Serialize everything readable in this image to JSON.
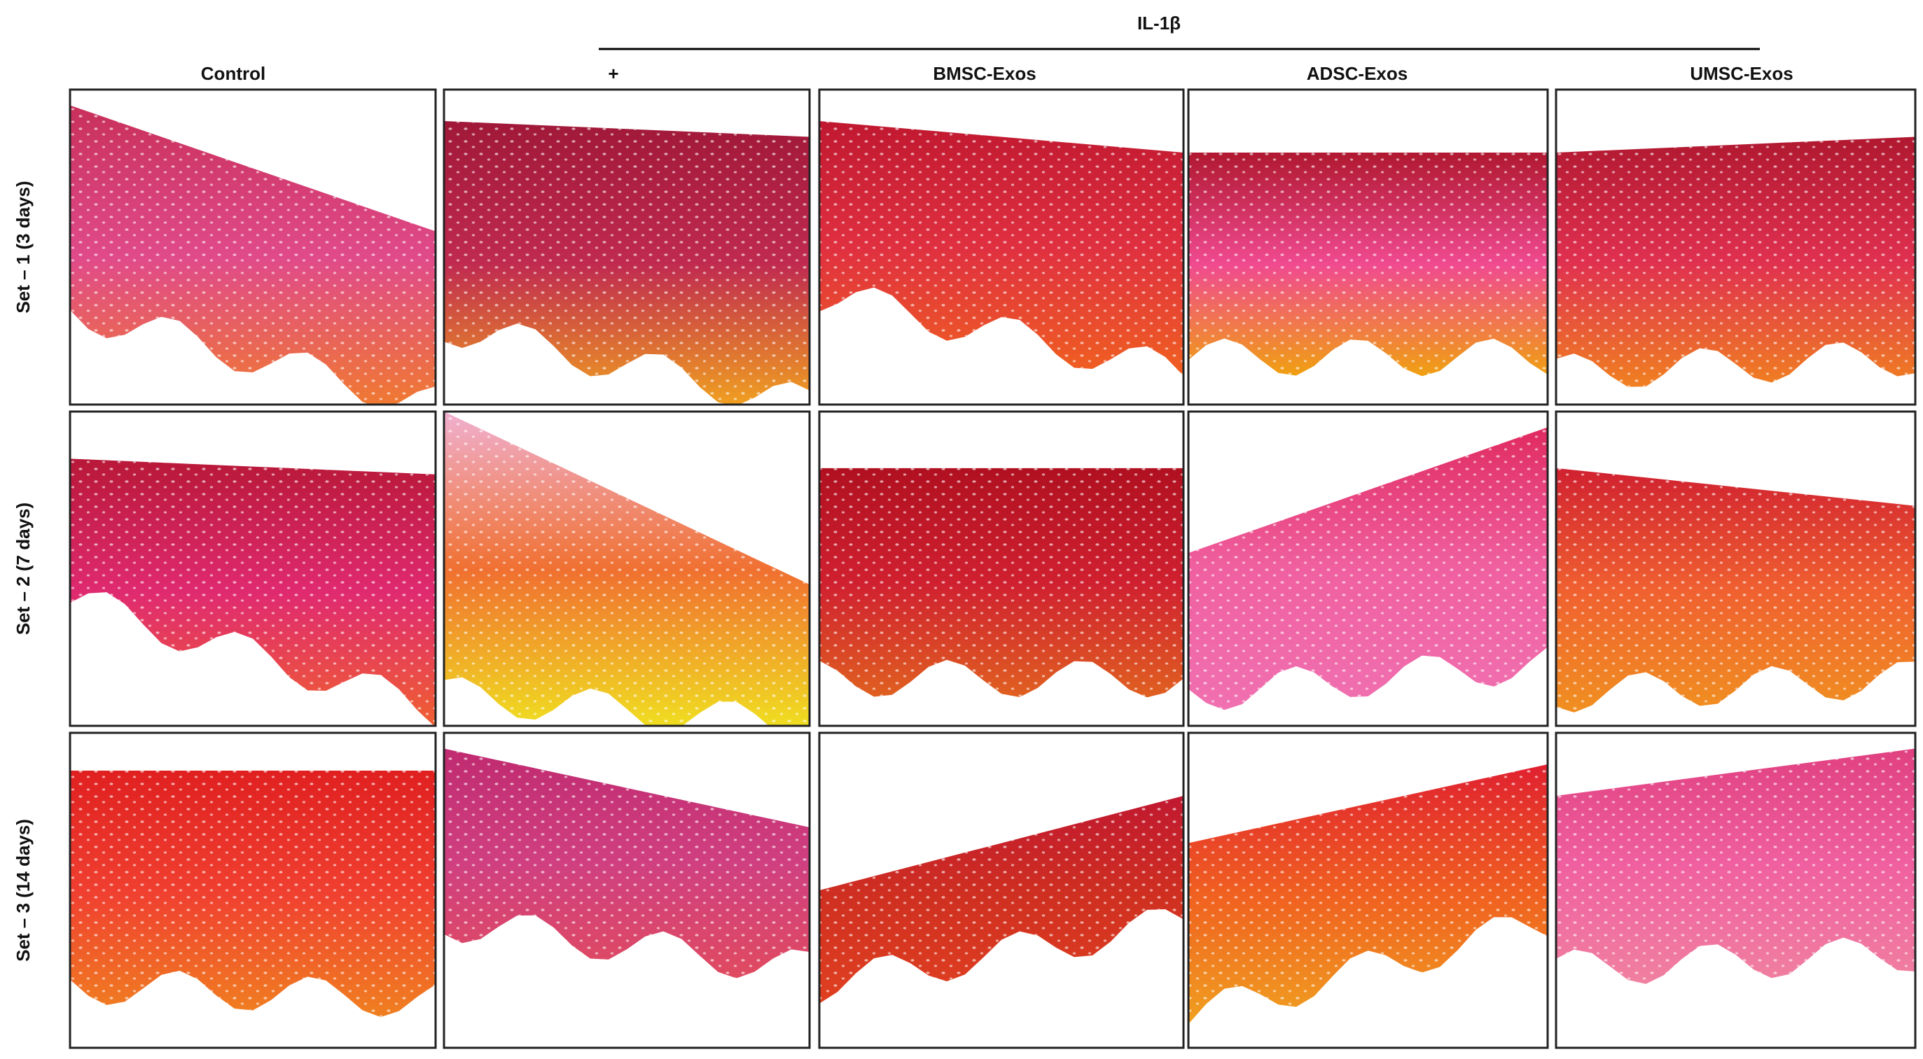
{
  "header": {
    "group_label": "IL-1β"
  },
  "columns": [
    "Control",
    "+",
    "BMSC-Exos",
    "ADSC-Exos",
    "UMSC-Exos"
  ],
  "rows": [
    "Set – 1 (3 days)",
    "Set – 2 (7 days)",
    "Set – 3 (14 days)"
  ]
}
